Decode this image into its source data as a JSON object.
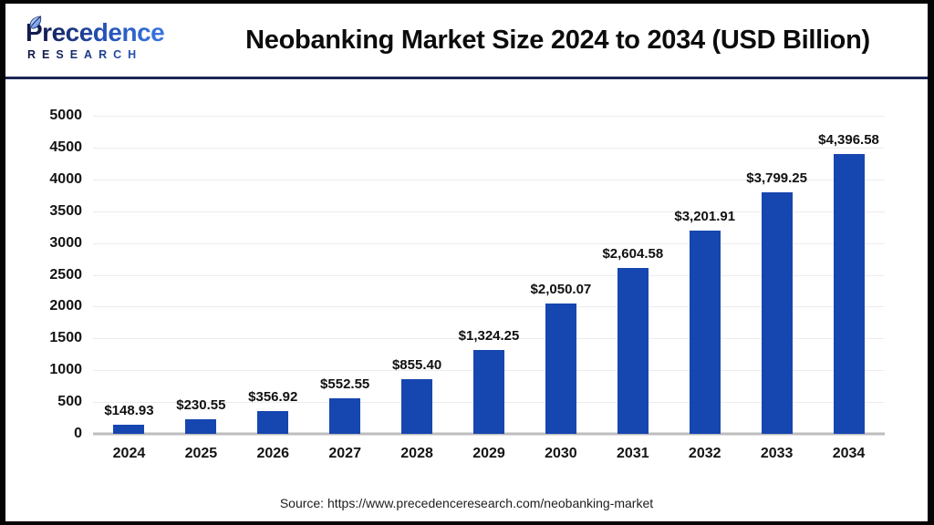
{
  "brand": {
    "name": "Precedence",
    "subtitle": "RESEARCH"
  },
  "colors": {
    "bar": "#1646b0",
    "divider": "#1c2654",
    "logo_dark": "#151d52",
    "logo_blue": "#2f6bd8"
  },
  "chart_data": {
    "type": "bar",
    "title": "Neobanking Market Size 2024 to 2034 (USD Billion)",
    "categories": [
      "2024",
      "2025",
      "2026",
      "2027",
      "2028",
      "2029",
      "2030",
      "2031",
      "2032",
      "2033",
      "2034"
    ],
    "values": [
      148.93,
      230.55,
      356.92,
      552.55,
      855.4,
      1324.25,
      2050.07,
      2604.58,
      3201.91,
      3799.25,
      4396.58
    ],
    "value_labels": [
      "$148.93",
      "$230.55",
      "$356.92",
      "$552.55",
      "$855.40",
      "$1,324.25",
      "$2,050.07",
      "$2,604.58",
      "$3,201.91",
      "$3,799.25",
      "$4,396.58"
    ],
    "xlabel": "",
    "ylabel": "",
    "ylim": [
      0,
      5000
    ],
    "yticks": [
      0,
      500,
      1000,
      1500,
      2000,
      2500,
      3000,
      3500,
      4000,
      4500,
      5000
    ],
    "grid": "horizontal",
    "legend": "none",
    "bar_color": "#1646b0",
    "source": "Source: https://www.precedenceresearch.com/neobanking-market"
  }
}
